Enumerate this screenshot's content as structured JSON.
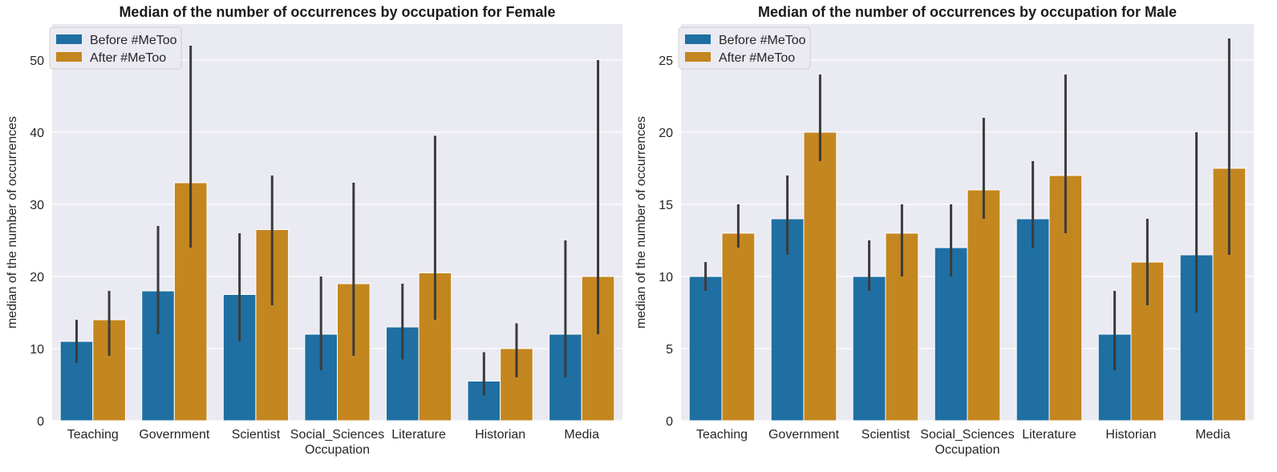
{
  "chart_data": [
    {
      "type": "bar",
      "title": "Median of the number of occurrences by occupation for Female",
      "xlabel": "Occupation",
      "ylabel": "median of the number of occurrences",
      "ylim": [
        0,
        55
      ],
      "yticks": [
        0,
        10,
        20,
        30,
        40,
        50
      ],
      "grid": true,
      "legend_position": "top-left",
      "categories": [
        "Teaching",
        "Government",
        "Scientist",
        "Social_Sciences",
        "Literature",
        "Historian",
        "Media"
      ],
      "series": [
        {
          "name": "Before #MeToo",
          "color": "#1f6fa3",
          "values": [
            11,
            18,
            17.5,
            12,
            13,
            5.5,
            12
          ],
          "ci": [
            [
              8,
              14
            ],
            [
              12,
              27
            ],
            [
              11,
              26
            ],
            [
              7,
              20
            ],
            [
              8.5,
              19
            ],
            [
              3.5,
              9.5
            ],
            [
              6,
              25
            ]
          ]
        },
        {
          "name": "After #MeToo",
          "color": "#c4861f",
          "values": [
            14,
            33,
            26.5,
            19,
            20.5,
            10,
            20
          ],
          "ci": [
            [
              9,
              18
            ],
            [
              24,
              52
            ],
            [
              16,
              34
            ],
            [
              9,
              33
            ],
            [
              14,
              39.5
            ],
            [
              6,
              13.5
            ],
            [
              12,
              50
            ]
          ]
        }
      ]
    },
    {
      "type": "bar",
      "title": "Median of the number of occurrences by occupation for Male",
      "xlabel": "Occupation",
      "ylabel": "median of the number of occurrences",
      "ylim": [
        0,
        27.5
      ],
      "yticks": [
        0,
        5,
        10,
        15,
        20,
        25
      ],
      "grid": true,
      "legend_position": "top-left",
      "categories": [
        "Teaching",
        "Government",
        "Scientist",
        "Social_Sciences",
        "Literature",
        "Historian",
        "Media"
      ],
      "series": [
        {
          "name": "Before #MeToo",
          "color": "#1f6fa3",
          "values": [
            10,
            14,
            10,
            12,
            14,
            6,
            11.5
          ],
          "ci": [
            [
              9,
              11
            ],
            [
              11.5,
              17
            ],
            [
              9,
              12.5
            ],
            [
              10,
              15
            ],
            [
              12,
              18
            ],
            [
              3.5,
              9
            ],
            [
              7.5,
              20
            ]
          ]
        },
        {
          "name": "After #MeToo",
          "color": "#c4861f",
          "values": [
            13,
            20,
            13,
            16,
            17,
            11,
            17.5
          ],
          "ci": [
            [
              12,
              15
            ],
            [
              18,
              24
            ],
            [
              10,
              15
            ],
            [
              14,
              21
            ],
            [
              13,
              24
            ],
            [
              8,
              14
            ],
            [
              11.5,
              26.5
            ]
          ]
        }
      ]
    }
  ]
}
